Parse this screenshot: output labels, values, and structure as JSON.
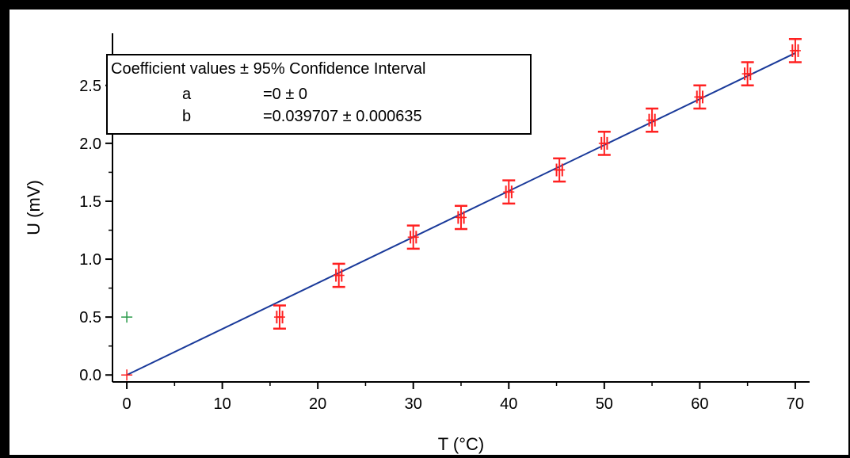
{
  "chart_data": {
    "type": "scatter",
    "xlabel": "T (°C)",
    "ylabel": "U (mV)",
    "xlim": [
      -1.5,
      71.5
    ],
    "ylim": [
      -0.06,
      2.95
    ],
    "x_ticks": [
      0,
      10,
      20,
      30,
      40,
      50,
      60,
      70
    ],
    "x_tick_labels": [
      "0",
      "10",
      "20",
      "30",
      "40",
      "50",
      "60",
      "70"
    ],
    "y_ticks": [
      0.0,
      0.5,
      1.0,
      1.5,
      2.0,
      2.5
    ],
    "y_tick_labels": [
      "0.0",
      "0.5",
      "1.0",
      "1.5",
      "2.0",
      "2.5"
    ],
    "grid": false,
    "series": [
      {
        "type": "scatter",
        "color": "#ff2020",
        "x": [
          0,
          16,
          22.2,
          30,
          35,
          40,
          45.3,
          50,
          55,
          60,
          65,
          70
        ],
        "y": [
          0.0,
          0.5,
          0.86,
          1.19,
          1.36,
          1.58,
          1.77,
          2.0,
          2.2,
          2.4,
          2.6,
          2.8
        ],
        "x_error": [
          0,
          0.3,
          0.3,
          0.3,
          0.3,
          0.3,
          0.3,
          0.3,
          0.3,
          0.3,
          0.3,
          0.3
        ],
        "y_error": [
          0,
          0.1,
          0.1,
          0.1,
          0.1,
          0.1,
          0.1,
          0.1,
          0.1,
          0.1,
          0.1,
          0.1
        ]
      },
      {
        "type": "scatter",
        "color": "#2a9a4a",
        "x": [
          0
        ],
        "y": [
          0.5
        ]
      },
      {
        "type": "line",
        "color": "#1a3a9a",
        "x": [
          0,
          70
        ],
        "y": [
          0.0,
          2.7795
        ]
      }
    ],
    "legend": {
      "title": "Coefficient values ± 95% Confidence Interval",
      "rows": [
        {
          "name": "a",
          "value": "=0 ± 0"
        },
        {
          "name": "b",
          "value": "=0.039707 ± 0.000635"
        }
      ],
      "placement": "top-left"
    }
  }
}
